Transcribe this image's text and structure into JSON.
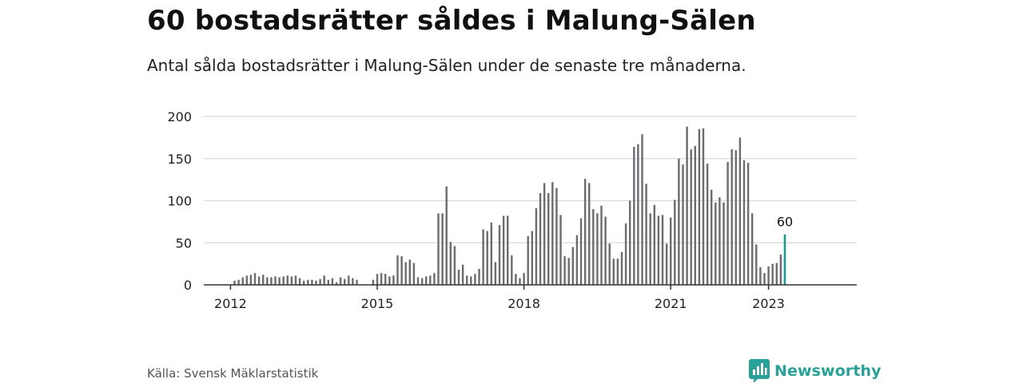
{
  "header": {
    "title": "60 bostadsrätter såldes i Malung-Sälen",
    "subtitle": "Antal sålda bostadsrätter i Malung-Sälen under de senaste tre månaderna."
  },
  "footer": {
    "source": "Källa: Svensk Mäklarstatistik",
    "brand": "Newsworthy"
  },
  "colors": {
    "bars": "#6b6b70",
    "highlight": "#1a9c95",
    "grid": "#d9d9d9",
    "axis": "#333333",
    "brand": "#2aa198"
  },
  "chart_data": {
    "type": "bar",
    "x_start": "2012-02",
    "x_ticks": [
      "2012",
      "2015",
      "2018",
      "2021",
      "2023"
    ],
    "y_ticks": [
      0,
      50,
      100,
      150,
      200
    ],
    "ylim": [
      0,
      200
    ],
    "grid": true,
    "highlight_label": "60",
    "values": [
      5,
      6,
      9,
      11,
      12,
      14,
      10,
      12,
      9,
      9,
      10,
      9,
      10,
      11,
      10,
      11,
      8,
      5,
      6,
      6,
      5,
      7,
      11,
      6,
      8,
      3,
      9,
      7,
      11,
      8,
      6,
      0,
      0,
      0,
      6,
      13,
      14,
      13,
      10,
      11,
      35,
      34,
      27,
      30,
      26,
      9,
      8,
      10,
      11,
      14,
      85,
      85,
      117,
      51,
      46,
      18,
      24,
      11,
      10,
      13,
      19,
      66,
      64,
      74,
      27,
      71,
      82,
      82,
      35,
      13,
      8,
      14,
      58,
      64,
      91,
      109,
      121,
      109,
      122,
      115,
      83,
      34,
      32,
      45,
      59,
      79,
      126,
      121,
      90,
      85,
      94,
      81,
      49,
      31,
      31,
      39,
      73,
      100,
      164,
      167,
      179,
      120,
      85,
      95,
      82,
      83,
      49,
      80,
      101,
      150,
      143,
      188,
      161,
      165,
      185,
      186,
      144,
      113,
      98,
      104,
      98,
      146,
      161,
      160,
      175,
      148,
      145,
      85,
      48,
      21,
      14,
      22,
      25,
      26,
      36,
      60
    ]
  }
}
